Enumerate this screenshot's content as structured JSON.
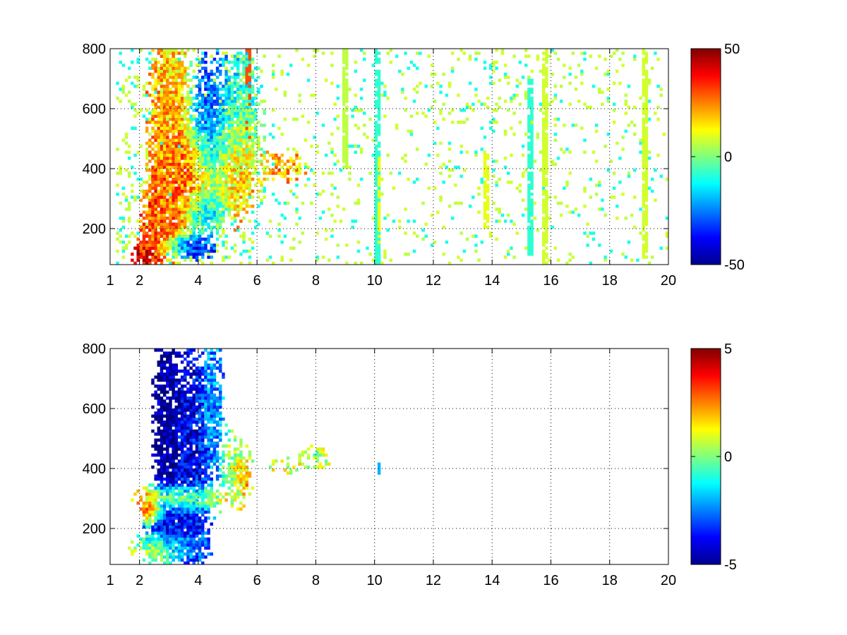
{
  "chart_data": [
    {
      "type": "heatmap",
      "title": "",
      "xlabel": "",
      "ylabel": "",
      "xlim": [
        1,
        20
      ],
      "ylim": [
        80,
        800
      ],
      "x_ticks": [
        1,
        2,
        4,
        6,
        8,
        10,
        12,
        14,
        16,
        18,
        20
      ],
      "x_tick_labels": [
        "1",
        "2",
        "4",
        "6",
        "8",
        "10",
        "12",
        "14",
        "16",
        "18",
        "20"
      ],
      "y_ticks": [
        200,
        400,
        600,
        800
      ],
      "y_tick_labels": [
        "200",
        "400",
        "600",
        "800"
      ],
      "grid": true,
      "colormap": "jet",
      "clim": [
        -50,
        50
      ],
      "colorbar_ticks": [
        -50,
        0,
        50
      ],
      "colorbar_tick_labels": [
        "-50",
        "0",
        "50"
      ],
      "blobs": [
        {
          "x": 2.2,
          "y": 120,
          "sx": 0.3,
          "sy": 30,
          "v": 38,
          "w": 1.0
        },
        {
          "x": 2.7,
          "y": 250,
          "sx": 0.35,
          "sy": 60,
          "v": 30,
          "w": 1.0
        },
        {
          "x": 3.0,
          "y": 400,
          "sx": 0.4,
          "sy": 200,
          "v": 25,
          "w": 1.0
        },
        {
          "x": 3.0,
          "y": 650,
          "sx": 0.35,
          "sy": 150,
          "v": 15,
          "w": 0.8
        },
        {
          "x": 3.8,
          "y": 140,
          "sx": 0.5,
          "sy": 25,
          "v": -35,
          "w": 1.0
        },
        {
          "x": 3.9,
          "y": 360,
          "sx": 0.5,
          "sy": 90,
          "v": 32,
          "w": 1.0
        },
        {
          "x": 4.4,
          "y": 520,
          "sx": 0.4,
          "sy": 150,
          "v": -30,
          "w": 0.9
        },
        {
          "x": 4.2,
          "y": 260,
          "sx": 0.4,
          "sy": 40,
          "v": -25,
          "w": 0.9
        },
        {
          "x": 5.3,
          "y": 420,
          "sx": 0.5,
          "sy": 120,
          "v": 20,
          "w": 0.8
        },
        {
          "x": 5.5,
          "y": 600,
          "sx": 0.4,
          "sy": 120,
          "v": -12,
          "w": 0.7
        },
        {
          "x": 7.0,
          "y": 400,
          "sx": 0.4,
          "sy": 30,
          "v": 20,
          "w": 0.7
        }
      ],
      "base_level": 0,
      "sparse_values": [
        -10,
        8,
        6
      ],
      "vertical_streaks": [
        {
          "x": 5.7,
          "y0": 500,
          "y1": 800,
          "v": 30
        },
        {
          "x": 9.0,
          "y0": 400,
          "y1": 800,
          "v": 6
        },
        {
          "x": 10.1,
          "y0": 80,
          "y1": 800,
          "v": -8
        },
        {
          "x": 10.15,
          "y0": 150,
          "y1": 450,
          "v": 10
        },
        {
          "x": 13.8,
          "y0": 200,
          "y1": 450,
          "v": 10
        },
        {
          "x": 15.3,
          "y0": 100,
          "y1": 700,
          "v": -8
        },
        {
          "x": 15.8,
          "y0": 80,
          "y1": 800,
          "v": 8
        },
        {
          "x": 19.2,
          "y0": 100,
          "y1": 800,
          "v": 8
        }
      ]
    },
    {
      "type": "heatmap",
      "title": "",
      "xlabel": "",
      "ylabel": "",
      "xlim": [
        1,
        20
      ],
      "ylim": [
        80,
        800
      ],
      "x_ticks": [
        1,
        2,
        4,
        6,
        8,
        10,
        12,
        14,
        16,
        18,
        20
      ],
      "x_tick_labels": [
        "1",
        "2",
        "4",
        "6",
        "8",
        "10",
        "12",
        "14",
        "16",
        "18",
        "20"
      ],
      "y_ticks": [
        200,
        400,
        600,
        800
      ],
      "y_tick_labels": [
        "200",
        "400",
        "600",
        "800"
      ],
      "grid": true,
      "colormap": "jet",
      "clim": [
        -5,
        5
      ],
      "colorbar_ticks": [
        -5,
        0,
        5
      ],
      "colorbar_tick_labels": [
        "-5",
        "0",
        "5"
      ],
      "blobs": [
        {
          "x": 2.9,
          "y": 550,
          "sx": 0.25,
          "sy": 200,
          "v": -5,
          "w": 1.0
        },
        {
          "x": 3.7,
          "y": 480,
          "sx": 0.45,
          "sy": 220,
          "v": -4,
          "w": 1.0
        },
        {
          "x": 3.3,
          "y": 300,
          "sx": 0.9,
          "sy": 25,
          "v": 2,
          "w": 1.0
        },
        {
          "x": 2.4,
          "y": 250,
          "sx": 0.2,
          "sy": 20,
          "v": 3.5,
          "w": 1.0
        },
        {
          "x": 3.2,
          "y": 210,
          "sx": 0.6,
          "sy": 40,
          "v": -3.5,
          "w": 0.9
        },
        {
          "x": 2.6,
          "y": 130,
          "sx": 0.5,
          "sy": 30,
          "v": 0.5,
          "w": 0.9
        },
        {
          "x": 3.8,
          "y": 150,
          "sx": 0.4,
          "sy": 30,
          "v": -2,
          "w": 0.8
        },
        {
          "x": 4.4,
          "y": 600,
          "sx": 0.25,
          "sy": 150,
          "v": -2,
          "w": 0.9
        },
        {
          "x": 5.3,
          "y": 400,
          "sx": 0.3,
          "sy": 80,
          "v": 0.5,
          "w": 0.7
        },
        {
          "x": 5.6,
          "y": 370,
          "sx": 0.15,
          "sy": 30,
          "v": 2.5,
          "w": 0.8
        },
        {
          "x": 7.0,
          "y": 410,
          "sx": 0.4,
          "sy": 20,
          "v": 1,
          "w": 0.4
        },
        {
          "x": 8.0,
          "y": 440,
          "sx": 0.4,
          "sy": 30,
          "v": 0.5,
          "w": 0.4
        }
      ],
      "base_level": null,
      "sparse_values": [],
      "vertical_streaks": [
        {
          "x": 10.15,
          "y0": 380,
          "y1": 420,
          "v": -2
        }
      ]
    }
  ]
}
